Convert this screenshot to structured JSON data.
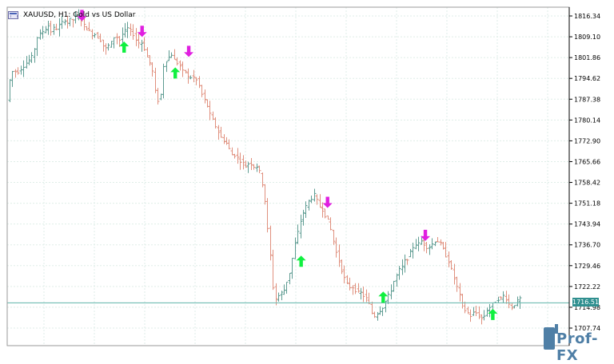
{
  "window": {
    "title": "XAUUSD, H1:  Gold vs US Dollar",
    "icon": "chart-window-icon"
  },
  "colors": {
    "background": "#ffffff",
    "grid": "#dfeee8",
    "frame": "#9a9a9a",
    "bull_bar": "#5e9c92",
    "bear_bar": "#e0907e",
    "up_arrow": "#10f040",
    "down_arrow": "#e020e0",
    "price_line": "#70bdb2",
    "price_label_bg": "#2f8f8f",
    "watermark": "#4f7fa6"
  },
  "price_axis": {
    "labels": [
      "1816.34",
      "1809.10",
      "1801.86",
      "1794.62",
      "1787.38",
      "1780.14",
      "1772.90",
      "1765.66",
      "1758.42",
      "1751.18",
      "1743.94",
      "1736.70",
      "1729.46",
      "1722.22",
      "1714.98",
      "1707.74"
    ],
    "current_price": "1716.51"
  },
  "watermark": {
    "text": "Prof-FX"
  },
  "chart_data": {
    "type": "ohlc",
    "symbol": "XAUUSD",
    "timeframe": "H1",
    "ylim": [
      1703.5,
      1818.5
    ],
    "grid": true,
    "current_price": 1716.51,
    "price_path": [
      1787,
      1794,
      1797,
      1797,
      1797,
      1798,
      1799,
      1800,
      1801,
      1802,
      1805,
      1809,
      1810,
      1811,
      1812,
      1813,
      1811,
      1812,
      1812,
      1813,
      1814,
      1815,
      1814,
      1815,
      1815,
      1816,
      1816,
      1815,
      1813,
      1812,
      1811,
      1810,
      1810,
      1809,
      1808,
      1806,
      1805,
      1806,
      1807,
      1809,
      1809,
      1808,
      1810,
      1811,
      1812,
      1811,
      1810,
      1808,
      1807,
      1807,
      1805,
      1802,
      1800,
      1797,
      1790,
      1787,
      1789,
      1799,
      1801,
      1802,
      1803,
      1801,
      1800,
      1799,
      1797,
      1797,
      1795,
      1795,
      1795,
      1794,
      1792,
      1789,
      1787,
      1785,
      1782,
      1780,
      1778,
      1776,
      1774,
      1773,
      1772,
      1770,
      1768,
      1768,
      1767,
      1766,
      1765,
      1764,
      1765,
      1765,
      1764,
      1764,
      1762,
      1758,
      1752,
      1742,
      1733,
      1722,
      1718,
      1719,
      1720,
      1721,
      1724,
      1727,
      1732,
      1737,
      1741,
      1745,
      1748,
      1750,
      1752,
      1753,
      1754,
      1752,
      1750,
      1749,
      1747,
      1745,
      1742,
      1738,
      1734,
      1731,
      1728,
      1725,
      1723,
      1722,
      1722,
      1721,
      1720,
      1720,
      1719,
      1718,
      1716,
      1713,
      1712,
      1713,
      1714,
      1715,
      1717,
      1719,
      1721,
      1724,
      1726,
      1728,
      1729,
      1731,
      1732,
      1734,
      1736,
      1737,
      1737,
      1738,
      1737,
      1736,
      1736,
      1737,
      1738,
      1738,
      1737,
      1735,
      1733,
      1731,
      1728,
      1725,
      1722,
      1719,
      1716,
      1714,
      1713,
      1712,
      1713,
      1713,
      1712,
      1711,
      1712,
      1714,
      1715,
      1716,
      1717,
      1718,
      1718,
      1719,
      1718,
      1716,
      1715,
      1716,
      1717,
      1718
    ],
    "arrows": [
      {
        "type": "sell",
        "x": 0.133,
        "price": 1816.5
      },
      {
        "type": "buy",
        "x": 0.208,
        "price": 1805.5
      },
      {
        "type": "sell",
        "x": 0.24,
        "price": 1811.0
      },
      {
        "type": "buy",
        "x": 0.299,
        "price": 1796.5
      },
      {
        "type": "sell",
        "x": 0.323,
        "price": 1804.0
      },
      {
        "type": "buy",
        "x": 0.523,
        "price": 1731.0
      },
      {
        "type": "sell",
        "x": 0.57,
        "price": 1751.5
      },
      {
        "type": "buy",
        "x": 0.669,
        "price": 1718.5
      },
      {
        "type": "sell",
        "x": 0.744,
        "price": 1740.0
      },
      {
        "type": "buy",
        "x": 0.864,
        "price": 1712.5
      }
    ]
  }
}
